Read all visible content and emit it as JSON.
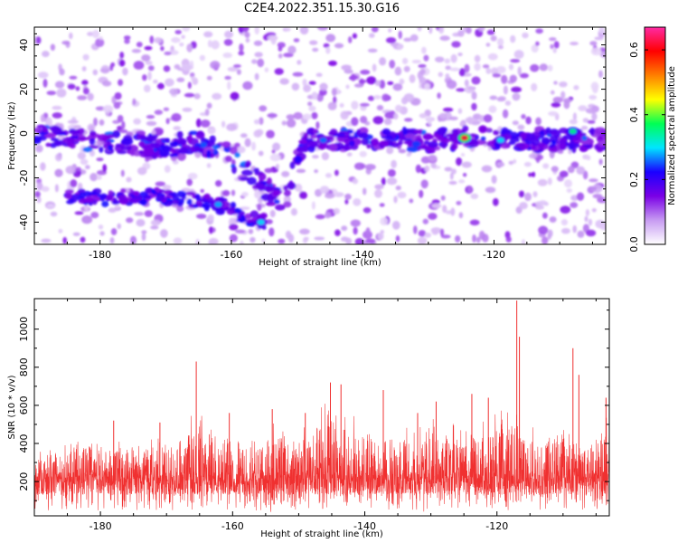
{
  "title": "C2E4.2022.351.15.30.G16",
  "chart_data": [
    {
      "type": "heatmap",
      "xlabel": "Height of straight line (km)",
      "ylabel": "Frequency (Hz)",
      "xlim": [
        -190,
        -103
      ],
      "ylim": [
        -50,
        48
      ],
      "x_ticks": [
        -180,
        -160,
        -140,
        -120
      ],
      "y_ticks": [
        -40,
        -20,
        0,
        20,
        40
      ],
      "colorbar": {
        "label": "Normalized spectral amplitude",
        "range": [
          0.0,
          0.67
        ],
        "ticks": [
          0.0,
          0.2,
          0.4,
          0.6
        ],
        "colors": [
          "#ffffff",
          "#c79bf2",
          "#7a00e6",
          "#1a00ff",
          "#00e5ff",
          "#00ff55",
          "#ffff00",
          "#ff7f00",
          "#ff0000",
          "#ff2aa5"
        ]
      },
      "ridge": {
        "name": "",
        "points": [
          {
            "x": -190,
            "y": 0
          },
          {
            "x": -183,
            "y": -3
          },
          {
            "x": -176,
            "y": -5
          },
          {
            "x": -170,
            "y": -6
          },
          {
            "x": -166,
            "y": -4
          },
          {
            "x": -162,
            "y": -6
          },
          {
            "x": -158,
            "y": -16
          },
          {
            "x": -155,
            "y": -24
          },
          {
            "x": -152,
            "y": -30
          },
          {
            "x": -149,
            "y": -3
          },
          {
            "x": -140,
            "y": -2
          },
          {
            "x": -130,
            "y": -3
          },
          {
            "x": -124,
            "y": -2
          },
          {
            "x": -116,
            "y": -3
          },
          {
            "x": -110,
            "y": -3
          },
          {
            "x": -104,
            "y": -3
          }
        ],
        "lower_band": [
          {
            "x": -185,
            "y": -29
          },
          {
            "x": -178,
            "y": -29
          },
          {
            "x": -172,
            "y": -28
          },
          {
            "x": -166,
            "y": -30
          },
          {
            "x": -162,
            "y": -32
          },
          {
            "x": -158,
            "y": -37
          },
          {
            "x": -155,
            "y": -40
          }
        ],
        "hotspots": [
          {
            "x": -124.5,
            "y": -2,
            "amp": 0.62
          },
          {
            "x": -119,
            "y": -3,
            "amp": 0.3
          },
          {
            "x": -108,
            "y": 1,
            "amp": 0.35
          },
          {
            "x": -155.5,
            "y": -40,
            "amp": 0.3
          },
          {
            "x": -162,
            "y": -32,
            "amp": 0.28
          },
          {
            "x": -146,
            "y": -3,
            "amp": 0.26
          }
        ]
      }
    },
    {
      "type": "line",
      "xlabel": "Height of straight line (km)",
      "ylabel": "SNR (10 * v/v)",
      "xlim": [
        -190,
        -103
      ],
      "ylim": [
        20,
        1160
      ],
      "x_ticks": [
        -180,
        -160,
        -140,
        -120
      ],
      "y_ticks": [
        200,
        400,
        600,
        800,
        1000
      ],
      "line_color": "#f03030",
      "series": [
        {
          "name": "",
          "baseline": 190,
          "envelope": [
            {
              "x": -190,
              "y": 360
            },
            {
              "x": -186,
              "y": 420
            },
            {
              "x": -182,
              "y": 460
            },
            {
              "x": -178,
              "y": 420
            },
            {
              "x": -174,
              "y": 440
            },
            {
              "x": -170,
              "y": 420
            },
            {
              "x": -166,
              "y": 560
            },
            {
              "x": -162,
              "y": 520
            },
            {
              "x": -158,
              "y": 480
            },
            {
              "x": -154,
              "y": 530
            },
            {
              "x": -150,
              "y": 500
            },
            {
              "x": -146,
              "y": 620
            },
            {
              "x": -142,
              "y": 560
            },
            {
              "x": -138,
              "y": 520
            },
            {
              "x": -134,
              "y": 480
            },
            {
              "x": -130,
              "y": 540
            },
            {
              "x": -126,
              "y": 520
            },
            {
              "x": -122,
              "y": 540
            },
            {
              "x": -118,
              "y": 600
            },
            {
              "x": -114,
              "y": 470
            },
            {
              "x": -110,
              "y": 540
            },
            {
              "x": -106,
              "y": 460
            },
            {
              "x": -103,
              "y": 560
            }
          ],
          "peaks": [
            {
              "x": -165.5,
              "y": 830
            },
            {
              "x": -145.2,
              "y": 720
            },
            {
              "x": -143.6,
              "y": 710
            },
            {
              "x": -137.2,
              "y": 680
            },
            {
              "x": -129.2,
              "y": 620
            },
            {
              "x": -123.8,
              "y": 660
            },
            {
              "x": -121.3,
              "y": 640
            },
            {
              "x": -117.0,
              "y": 1150
            },
            {
              "x": -116.6,
              "y": 960
            },
            {
              "x": -108.5,
              "y": 900
            },
            {
              "x": -107.6,
              "y": 760
            },
            {
              "x": -103.5,
              "y": 640
            },
            {
              "x": -178.0,
              "y": 520
            },
            {
              "x": -171.0,
              "y": 510
            },
            {
              "x": -160.5,
              "y": 560
            },
            {
              "x": -154.0,
              "y": 580
            },
            {
              "x": -149.0,
              "y": 560
            },
            {
              "x": -132.0,
              "y": 560
            }
          ]
        }
      ]
    }
  ]
}
